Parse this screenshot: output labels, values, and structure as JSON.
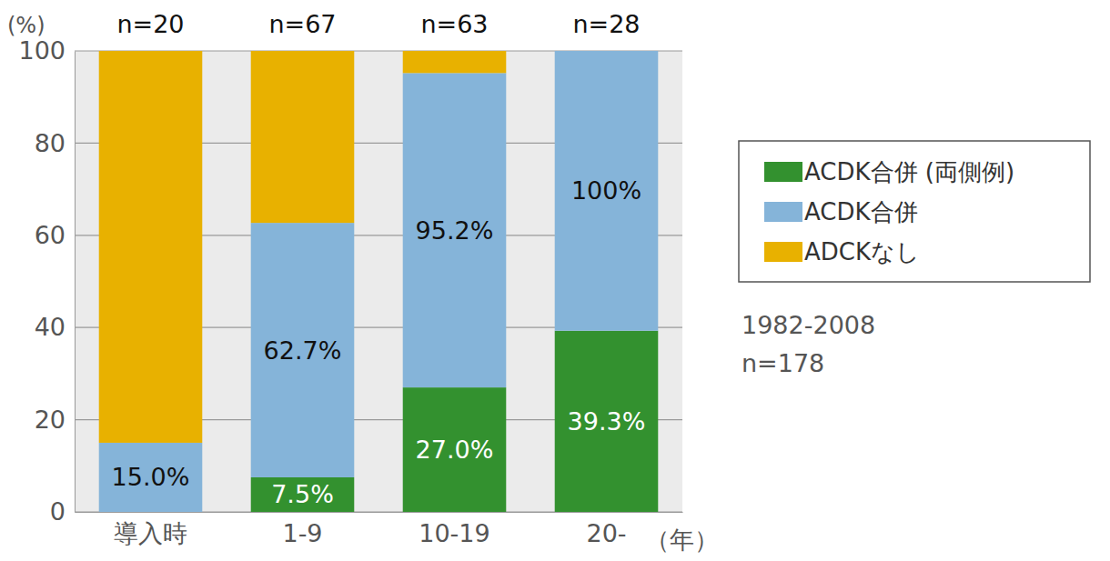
{
  "chart_data": {
    "type": "bar",
    "stacked": true,
    "categories": [
      "導入時",
      "1-9",
      "10-19",
      "20-"
    ],
    "x_label": "（年）",
    "y_label": "(%)",
    "ylim": [
      0,
      100
    ],
    "yticks": [
      0,
      20,
      40,
      60,
      80,
      100
    ],
    "grid": true,
    "legend": "right",
    "series": [
      {
        "name": "ACDK合併 (両側例)",
        "color": "#33912f",
        "values": [
          0,
          7.5,
          27.0,
          39.3
        ],
        "data_labels": true,
        "value_labels": [
          null,
          "7.5%",
          "27.0%",
          "39.3%"
        ]
      },
      {
        "name": "ACDK合併",
        "color": "#85b4d9",
        "values": [
          15.0,
          55.2,
          68.2,
          60.7
        ]
      },
      {
        "name": "ADCKなし",
        "color": "#e8b100",
        "values": [
          85.0,
          37.3,
          4.8,
          0
        ]
      }
    ],
    "annotations": [
      {
        "x": "導入時",
        "y": 15.0,
        "text": "15.0%"
      },
      {
        "x": "1-9",
        "y": 62.7,
        "text": "62.7%"
      },
      {
        "x": "10-19",
        "y": 95.2,
        "text": "95.2%"
      },
      {
        "x": "20-",
        "y": 100,
        "text": "100%"
      }
    ],
    "n_labels": [
      "n=20",
      "n=67",
      "n=63",
      "n=28"
    ],
    "notes": [
      "1982-2008",
      "n=178"
    ]
  }
}
